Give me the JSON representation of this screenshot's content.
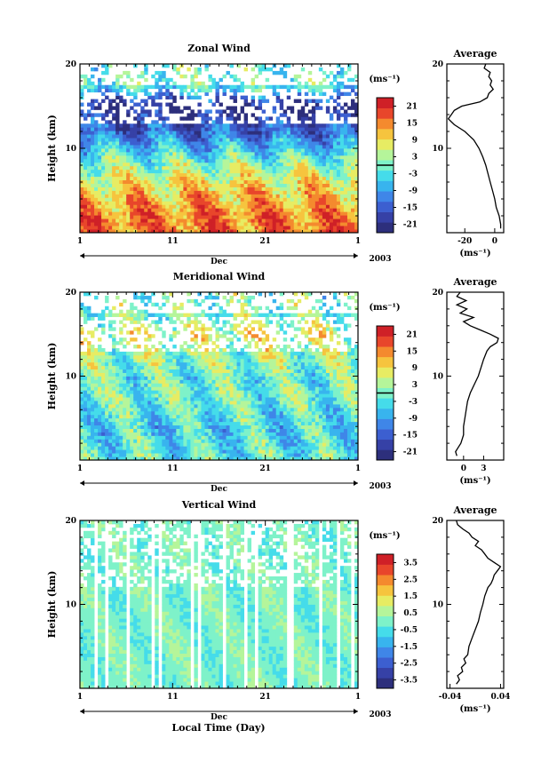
{
  "figure": {
    "xlabel": "Local Time (Day)",
    "ylabel": "Height (km)",
    "month_label": "Dec",
    "year_label": "2003",
    "avg_title": "Average"
  },
  "colormap": [
    "#2d2f7c",
    "#3641a6",
    "#3c5fd0",
    "#3f86e8",
    "#38b4ee",
    "#45dcea",
    "#7ef2c9",
    "#b5f59a",
    "#e7ec63",
    "#f6c43e",
    "#f48a2e",
    "#e8462b",
    "#cf2027"
  ],
  "chart_data": [
    {
      "type": "heatmap",
      "title": "Zonal Wind",
      "x_ticks": [
        "1",
        "11",
        "21",
        "1"
      ],
      "x_tick_values": [
        1,
        11,
        21,
        31
      ],
      "xlim": [
        1,
        31
      ],
      "ylim": [
        0,
        20
      ],
      "y_ticks": [
        10,
        20
      ],
      "unit": "(ms⁻¹)",
      "colorbar_ticks": [
        "21",
        "15",
        "9",
        "3",
        "-3",
        "-9",
        "-15",
        "-21"
      ],
      "colorbar_range": [
        -24,
        24
      ],
      "colorbar_contour": 0,
      "field": {
        "height_km": [
          0.5,
          2,
          4,
          6,
          8,
          10,
          12,
          14,
          15,
          16,
          17,
          18,
          19
        ],
        "mean_ms": [
          16,
          15,
          12,
          8,
          2,
          -6,
          -14,
          -19,
          -22,
          -14,
          -4,
          0,
          -1
        ]
      },
      "average": {
        "title": "Average",
        "xlim": [
          -32,
          6
        ],
        "x_ticks": [
          "-20",
          "0"
        ],
        "x_tick_values": [
          -20,
          0
        ],
        "xlabel": "(ms⁻¹)",
        "height_km": [
          0.5,
          1,
          2,
          3,
          4,
          5,
          6,
          7,
          8,
          9,
          10,
          11,
          12,
          12.8,
          13.5,
          14,
          14.5,
          15,
          15.5,
          16,
          16.5,
          17,
          17.5,
          18,
          18.5,
          19,
          19.5,
          20
        ],
        "value_ms": [
          4,
          4,
          3,
          1,
          0,
          -1.5,
          -3,
          -4.5,
          -6,
          -8,
          -10.5,
          -14,
          -20,
          -27,
          -31,
          -29,
          -27,
          -22,
          -10,
          -5,
          -4,
          -1,
          -3,
          -2,
          -4,
          -3,
          -7,
          -6
        ]
      }
    },
    {
      "type": "heatmap",
      "title": "Meridional Wind",
      "x_ticks": [
        "1",
        "11",
        "21",
        "1"
      ],
      "x_tick_values": [
        1,
        11,
        21,
        31
      ],
      "xlim": [
        1,
        31
      ],
      "ylim": [
        0,
        20
      ],
      "y_ticks": [
        10,
        20
      ],
      "unit": "(ms⁻¹)",
      "colorbar_ticks": [
        "21",
        "15",
        "9",
        "3",
        "-3",
        "-9",
        "-15",
        "-21"
      ],
      "colorbar_range": [
        -24,
        24
      ],
      "colorbar_contour": 0,
      "field": {
        "height_km": [
          0.5,
          2,
          4,
          6,
          8,
          10,
          12,
          14,
          15,
          16,
          17,
          18,
          19
        ],
        "mean_ms": [
          -2,
          -3,
          -4,
          -2,
          0,
          -1,
          2,
          4,
          6,
          3,
          0,
          1,
          0
        ]
      },
      "average": {
        "title": "Average",
        "xlim": [
          -2.5,
          6
        ],
        "x_ticks": [
          "0",
          "3"
        ],
        "x_tick_values": [
          0,
          3
        ],
        "xlabel": "(ms⁻¹)",
        "height_km": [
          0.5,
          1,
          1.5,
          2,
          3,
          4,
          5,
          6,
          7,
          8,
          9,
          10,
          11,
          12,
          13,
          13.5,
          14,
          14.5,
          15,
          15.5,
          16,
          16.5,
          17,
          17.5,
          18,
          18.5,
          19,
          19.5,
          20
        ],
        "value_ms": [
          -1,
          -1.2,
          -0.8,
          -0.4,
          0,
          0,
          0.2,
          0.4,
          0.6,
          1,
          1.6,
          2.2,
          2.6,
          3,
          3.5,
          4,
          5,
          5.2,
          4,
          2.5,
          1,
          0,
          1.5,
          -0.5,
          0.5,
          -1,
          0.4,
          -1,
          -0.5
        ]
      }
    },
    {
      "type": "heatmap",
      "title": "Vertical Wind",
      "x_ticks": [
        "1",
        "11",
        "21",
        "1"
      ],
      "x_tick_values": [
        1,
        11,
        21,
        31
      ],
      "xlim": [
        1,
        31
      ],
      "ylim": [
        0,
        20
      ],
      "y_ticks": [
        10,
        20
      ],
      "unit": "(ms⁻¹)",
      "colorbar_ticks": [
        "3.5",
        "2.5",
        "1.5",
        "0.5",
        "-0.5",
        "-1.5",
        "-2.5",
        "-3.5"
      ],
      "colorbar_range": [
        -4,
        4
      ],
      "field": {
        "height_km": [
          0.5,
          5,
          10,
          15,
          19
        ],
        "mean_ms": [
          0,
          0,
          0,
          0,
          0
        ]
      },
      "average": {
        "title": "Average",
        "xlim": [
          -0.045,
          0.045
        ],
        "x_ticks": [
          "-0.04",
          "0.04"
        ],
        "x_tick_values": [
          -0.04,
          0.04
        ],
        "xlabel": "(ms⁻¹)",
        "height_km": [
          0.5,
          1,
          1.5,
          2,
          2.5,
          3,
          3.5,
          4,
          5,
          6,
          7,
          8,
          9,
          10,
          11,
          12,
          12.5,
          13,
          13.5,
          14,
          14.5,
          15,
          15.5,
          16,
          16.5,
          17,
          17.5,
          18,
          18.5,
          19,
          19.5,
          20
        ],
        "value_ms": [
          -0.03,
          -0.025,
          -0.028,
          -0.02,
          -0.022,
          -0.015,
          -0.018,
          -0.012,
          -0.01,
          -0.005,
          0,
          0.005,
          0.008,
          0.012,
          0.015,
          0.02,
          0.025,
          0.028,
          0.03,
          0.035,
          0.04,
          0.03,
          0.02,
          0.015,
          0.01,
          0.0,
          0.005,
          -0.005,
          -0.01,
          -0.02,
          -0.028,
          -0.03
        ]
      }
    }
  ]
}
